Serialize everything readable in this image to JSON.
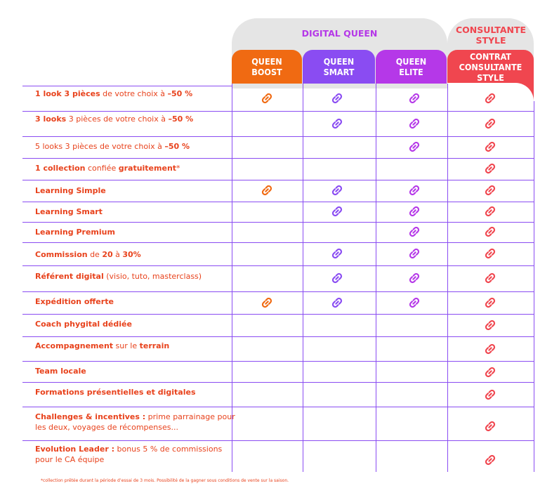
{
  "groups": {
    "digital_queen": "DIGITAL QUEEN",
    "consultante_style": "CONSULTANTE STYLE"
  },
  "columns": [
    {
      "key": "boost",
      "label": "QUEEN BOOST",
      "color": "#f06a12",
      "icon_color": "#f06a12"
    },
    {
      "key": "smart",
      "label": "QUEEN SMART",
      "color": "#8a4cf2",
      "icon_color": "#8a4cf2"
    },
    {
      "key": "elite",
      "label": "QUEEN ELITE",
      "color": "#b538e8",
      "icon_color": "#b538e8"
    },
    {
      "key": "contrat",
      "label": "CONTRAT CONSULTANTE STYLE",
      "color": "#f0464f",
      "icon_color": "#f0464f"
    }
  ],
  "colors": {
    "text": "#e8421c",
    "grid": "#8a4cf2",
    "group_bg": "#e5e5e5",
    "digital_queen_label": "#b538e8",
    "consultante_label": "#f0464f"
  },
  "icon_name": "link-icon",
  "rows": [
    {
      "parts": [
        {
          "t": "1 look 3 pièces",
          "b": true
        },
        {
          "t": " de  votre choix à ",
          "b": false
        },
        {
          "t": "–50 %",
          "b": true
        }
      ],
      "checks": [
        true,
        true,
        true,
        true
      ]
    },
    {
      "parts": [
        {
          "t": "3 looks",
          "b": true
        },
        {
          "t": " 3 pièces de  votre choix à ",
          "b": false
        },
        {
          "t": "–50 %",
          "b": true
        }
      ],
      "checks": [
        false,
        true,
        true,
        true
      ]
    },
    {
      "parts": [
        {
          "t": "5 looks 3 pièces de votre choix à ",
          "b": false
        },
        {
          "t": "–50 %",
          "b": true
        }
      ],
      "checks": [
        false,
        false,
        true,
        true
      ]
    },
    {
      "parts": [
        {
          "t": "1 collection",
          "b": true
        },
        {
          "t": " confiée ",
          "b": false
        },
        {
          "t": "gratuitement",
          "b": true
        },
        {
          "t": "*",
          "b": false
        }
      ],
      "checks": [
        false,
        false,
        false,
        true
      ]
    },
    {
      "parts": [
        {
          "t": "Learning Simple",
          "b": true
        }
      ],
      "checks": [
        true,
        true,
        true,
        true
      ]
    },
    {
      "parts": [
        {
          "t": "Learning Smart",
          "b": true
        }
      ],
      "checks": [
        false,
        true,
        true,
        true
      ]
    },
    {
      "parts": [
        {
          "t": "Learning Premium",
          "b": true
        }
      ],
      "checks": [
        false,
        false,
        true,
        true
      ]
    },
    {
      "parts": [
        {
          "t": "Commission",
          "b": true
        },
        {
          "t": " de ",
          "b": false
        },
        {
          "t": "20",
          "b": true
        },
        {
          "t": " à ",
          "b": false
        },
        {
          "t": "30%",
          "b": true
        }
      ],
      "checks": [
        false,
        true,
        true,
        true
      ]
    },
    {
      "parts": [
        {
          "t": "Référent digital",
          "b": true
        },
        {
          "t": " (visio, tuto, masterclass)",
          "b": false
        }
      ],
      "checks": [
        false,
        true,
        true,
        true
      ]
    },
    {
      "parts": [
        {
          "t": "Expédition offerte",
          "b": true
        }
      ],
      "checks": [
        true,
        true,
        true,
        true
      ]
    },
    {
      "parts": [
        {
          "t": "Coach phygital dédiée",
          "b": true
        }
      ],
      "checks": [
        false,
        false,
        false,
        true
      ]
    },
    {
      "parts": [
        {
          "t": "Accompagnement",
          "b": true
        },
        {
          "t": " sur le ",
          "b": false
        },
        {
          "t": "terrain",
          "b": true
        }
      ],
      "checks": [
        false,
        false,
        false,
        true
      ]
    },
    {
      "parts": [
        {
          "t": "Team locale",
          "b": true
        }
      ],
      "checks": [
        false,
        false,
        false,
        true
      ]
    },
    {
      "parts": [
        {
          "t": "Formations présentielles et digitales",
          "b": true
        }
      ],
      "checks": [
        false,
        false,
        false,
        true
      ]
    },
    {
      "parts": [
        {
          "t": "Challenges & incentives :",
          "b": true
        },
        {
          "t": " prime parrainage pour les deux, voyages de récompenses...",
          "b": false
        }
      ],
      "checks": [
        false,
        false,
        false,
        true
      ]
    },
    {
      "parts": [
        {
          "t": "Evolution Leader :",
          "b": true
        },
        {
          "t": " bonus 5 % de commissions pour le CA équipe",
          "b": false
        }
      ],
      "checks": [
        false,
        false,
        false,
        true
      ]
    }
  ],
  "footnote": "*collection prêtée durant la période d’essai de 3 mois. Possibilité de la gagner sous conditions de vente sur la saison."
}
